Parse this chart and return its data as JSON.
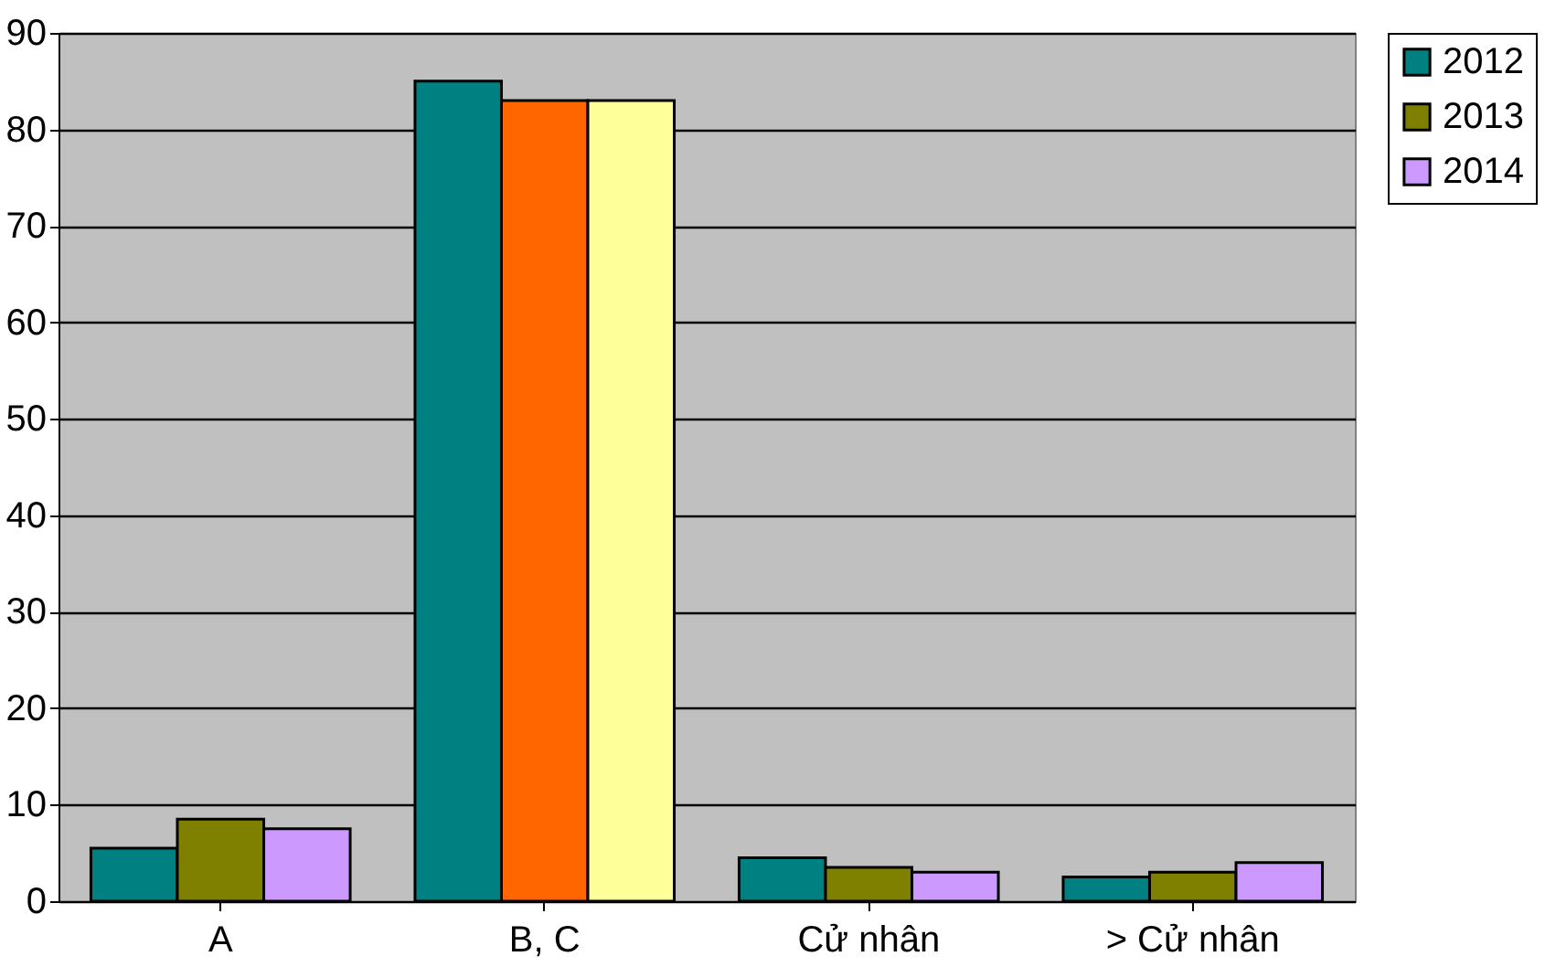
{
  "chart_data": {
    "type": "bar",
    "categories": [
      "A",
      "B, C",
      "Cử nhân",
      "> Cử nhân"
    ],
    "series": [
      {
        "name": "2012",
        "color": "#008080",
        "values": [
          5.5,
          85,
          4.5,
          2.5
        ]
      },
      {
        "name": "2013",
        "color": "#808000",
        "colors": [
          "#808000",
          "#ff6600",
          "#808000",
          "#808000"
        ],
        "values": [
          8.5,
          83,
          3.5,
          3
        ]
      },
      {
        "name": "2014",
        "color": "#cc99ff",
        "colors": [
          "#cc99ff",
          "#ffff99",
          "#cc99ff",
          "#cc99ff"
        ],
        "values": [
          7.5,
          83,
          3,
          4
        ]
      }
    ],
    "ylim": [
      0,
      90
    ],
    "yticks": [
      0,
      10,
      20,
      30,
      40,
      50,
      60,
      70,
      80,
      90
    ],
    "grid": "y",
    "legend": "right"
  }
}
